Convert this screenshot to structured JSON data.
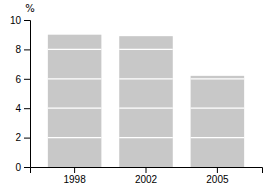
{
  "chart_data": {
    "type": "bar",
    "categories": [
      "1998",
      "2002",
      "2005"
    ],
    "values": [
      9.0,
      8.9,
      6.2
    ],
    "color": "#c8c8c8",
    "ylabel": "%",
    "ylim": [
      0,
      10
    ],
    "yticks": [
      0,
      2,
      4,
      6,
      8,
      10
    ],
    "grid": false
  }
}
